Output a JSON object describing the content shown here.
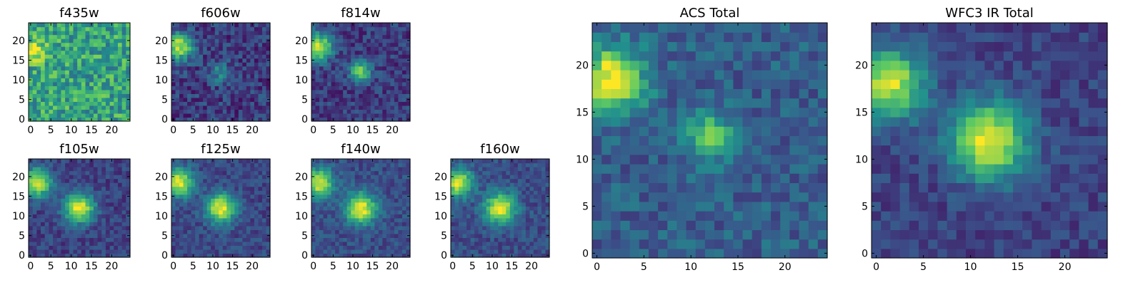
{
  "colormap": {
    "name": "viridis",
    "stops": [
      "#440154",
      "#3b528b",
      "#21908d",
      "#5dc963",
      "#fde725"
    ]
  },
  "chart_data": [
    {
      "type": "heatmap",
      "title": "f435w",
      "x_ticks": [
        "0",
        "5",
        "10",
        "15",
        "20"
      ],
      "y_ticks": [
        "0",
        "5",
        "10",
        "15",
        "20"
      ],
      "xlim": [
        0,
        25
      ],
      "ylim": [
        0,
        25
      ],
      "grid": false,
      "features": [
        {
          "x": 1,
          "y": 17.5,
          "amp": 0.35,
          "sigma": 2.0
        }
      ],
      "background": 0.58,
      "noise": 0.22
    },
    {
      "type": "heatmap",
      "title": "f606w",
      "x_ticks": [
        "0",
        "5",
        "10",
        "15",
        "20"
      ],
      "y_ticks": [
        "0",
        "5",
        "10",
        "15",
        "20"
      ],
      "xlim": [
        0,
        25
      ],
      "ylim": [
        0,
        25
      ],
      "grid": false,
      "features": [
        {
          "x": 1.5,
          "y": 18.5,
          "amp": 0.72,
          "sigma": 2.4
        },
        {
          "x": 11.5,
          "y": 12,
          "amp": 0.25,
          "sigma": 2.0
        }
      ],
      "background": 0.18,
      "noise": 0.15
    },
    {
      "type": "heatmap",
      "title": "f814w",
      "x_ticks": [
        "0",
        "5",
        "10",
        "15",
        "20"
      ],
      "y_ticks": [
        "0",
        "5",
        "10",
        "15",
        "20"
      ],
      "xlim": [
        0,
        25
      ],
      "ylim": [
        0,
        25
      ],
      "grid": false,
      "features": [
        {
          "x": 1.5,
          "y": 18.5,
          "amp": 0.75,
          "sigma": 2.4
        },
        {
          "x": 12,
          "y": 12,
          "amp": 0.62,
          "sigma": 1.8
        }
      ],
      "background": 0.18,
      "noise": 0.13
    },
    {
      "type": "heatmap",
      "title": "f105w",
      "x_ticks": [
        "0",
        "5",
        "10",
        "15",
        "20"
      ],
      "y_ticks": [
        "0",
        "5",
        "10",
        "15",
        "20"
      ],
      "xlim": [
        0,
        25
      ],
      "ylim": [
        0,
        25
      ],
      "grid": false,
      "features": [
        {
          "x": 1.5,
          "y": 18.5,
          "amp": 0.75,
          "sigma": 2.5
        },
        {
          "x": 12,
          "y": 12,
          "amp": 0.78,
          "sigma": 2.6
        }
      ],
      "background": 0.2,
      "noise": 0.1
    },
    {
      "type": "heatmap",
      "title": "f125w",
      "x_ticks": [
        "0",
        "5",
        "10",
        "15",
        "20"
      ],
      "y_ticks": [
        "0",
        "5",
        "10",
        "15",
        "20"
      ],
      "xlim": [
        0,
        25
      ],
      "ylim": [
        0,
        25
      ],
      "grid": false,
      "features": [
        {
          "x": 1.5,
          "y": 18.5,
          "amp": 0.75,
          "sigma": 2.5
        },
        {
          "x": 12,
          "y": 12,
          "amp": 0.78,
          "sigma": 2.6
        }
      ],
      "background": 0.22,
      "noise": 0.1
    },
    {
      "type": "heatmap",
      "title": "f140w",
      "x_ticks": [
        "0",
        "5",
        "10",
        "15",
        "20"
      ],
      "y_ticks": [
        "0",
        "5",
        "10",
        "15",
        "20"
      ],
      "xlim": [
        0,
        25
      ],
      "ylim": [
        0,
        25
      ],
      "grid": false,
      "features": [
        {
          "x": 1.5,
          "y": 18.5,
          "amp": 0.72,
          "sigma": 2.5
        },
        {
          "x": 12,
          "y": 12,
          "amp": 0.76,
          "sigma": 2.7
        }
      ],
      "background": 0.24,
      "noise": 0.1
    },
    {
      "type": "heatmap",
      "title": "f160w",
      "x_ticks": [
        "0",
        "5",
        "10",
        "15",
        "20"
      ],
      "y_ticks": [
        "0",
        "5",
        "10",
        "15",
        "20"
      ],
      "xlim": [
        0,
        25
      ],
      "ylim": [
        0,
        25
      ],
      "grid": false,
      "features": [
        {
          "x": 1.5,
          "y": 18.5,
          "amp": 0.72,
          "sigma": 2.5
        },
        {
          "x": 12,
          "y": 12,
          "amp": 0.76,
          "sigma": 2.7
        }
      ],
      "background": 0.24,
      "noise": 0.1
    },
    {
      "type": "heatmap",
      "title": "ACS Total",
      "x_ticks": [
        "0",
        "5",
        "10",
        "15",
        "20"
      ],
      "y_ticks": [
        "0",
        "5",
        "10",
        "15",
        "20"
      ],
      "xlim": [
        0,
        25
      ],
      "ylim": [
        0,
        25
      ],
      "grid": false,
      "features": [
        {
          "x": 1.5,
          "y": 18.5,
          "amp": 0.72,
          "sigma": 2.4
        },
        {
          "x": 12,
          "y": 12.5,
          "amp": 0.45,
          "sigma": 1.8
        }
      ],
      "background": 0.3,
      "noise": 0.12
    },
    {
      "type": "heatmap",
      "title": "WFC3 IR Total",
      "x_ticks": [
        "0",
        "5",
        "10",
        "15",
        "20"
      ],
      "y_ticks": [
        "0",
        "5",
        "10",
        "15",
        "20"
      ],
      "xlim": [
        0,
        25
      ],
      "ylim": [
        0,
        25
      ],
      "grid": false,
      "features": [
        {
          "x": 1.5,
          "y": 18,
          "amp": 0.72,
          "sigma": 2.6
        },
        {
          "x": 12,
          "y": 12,
          "amp": 0.8,
          "sigma": 2.8
        }
      ],
      "background": 0.2,
      "noise": 0.09
    }
  ]
}
